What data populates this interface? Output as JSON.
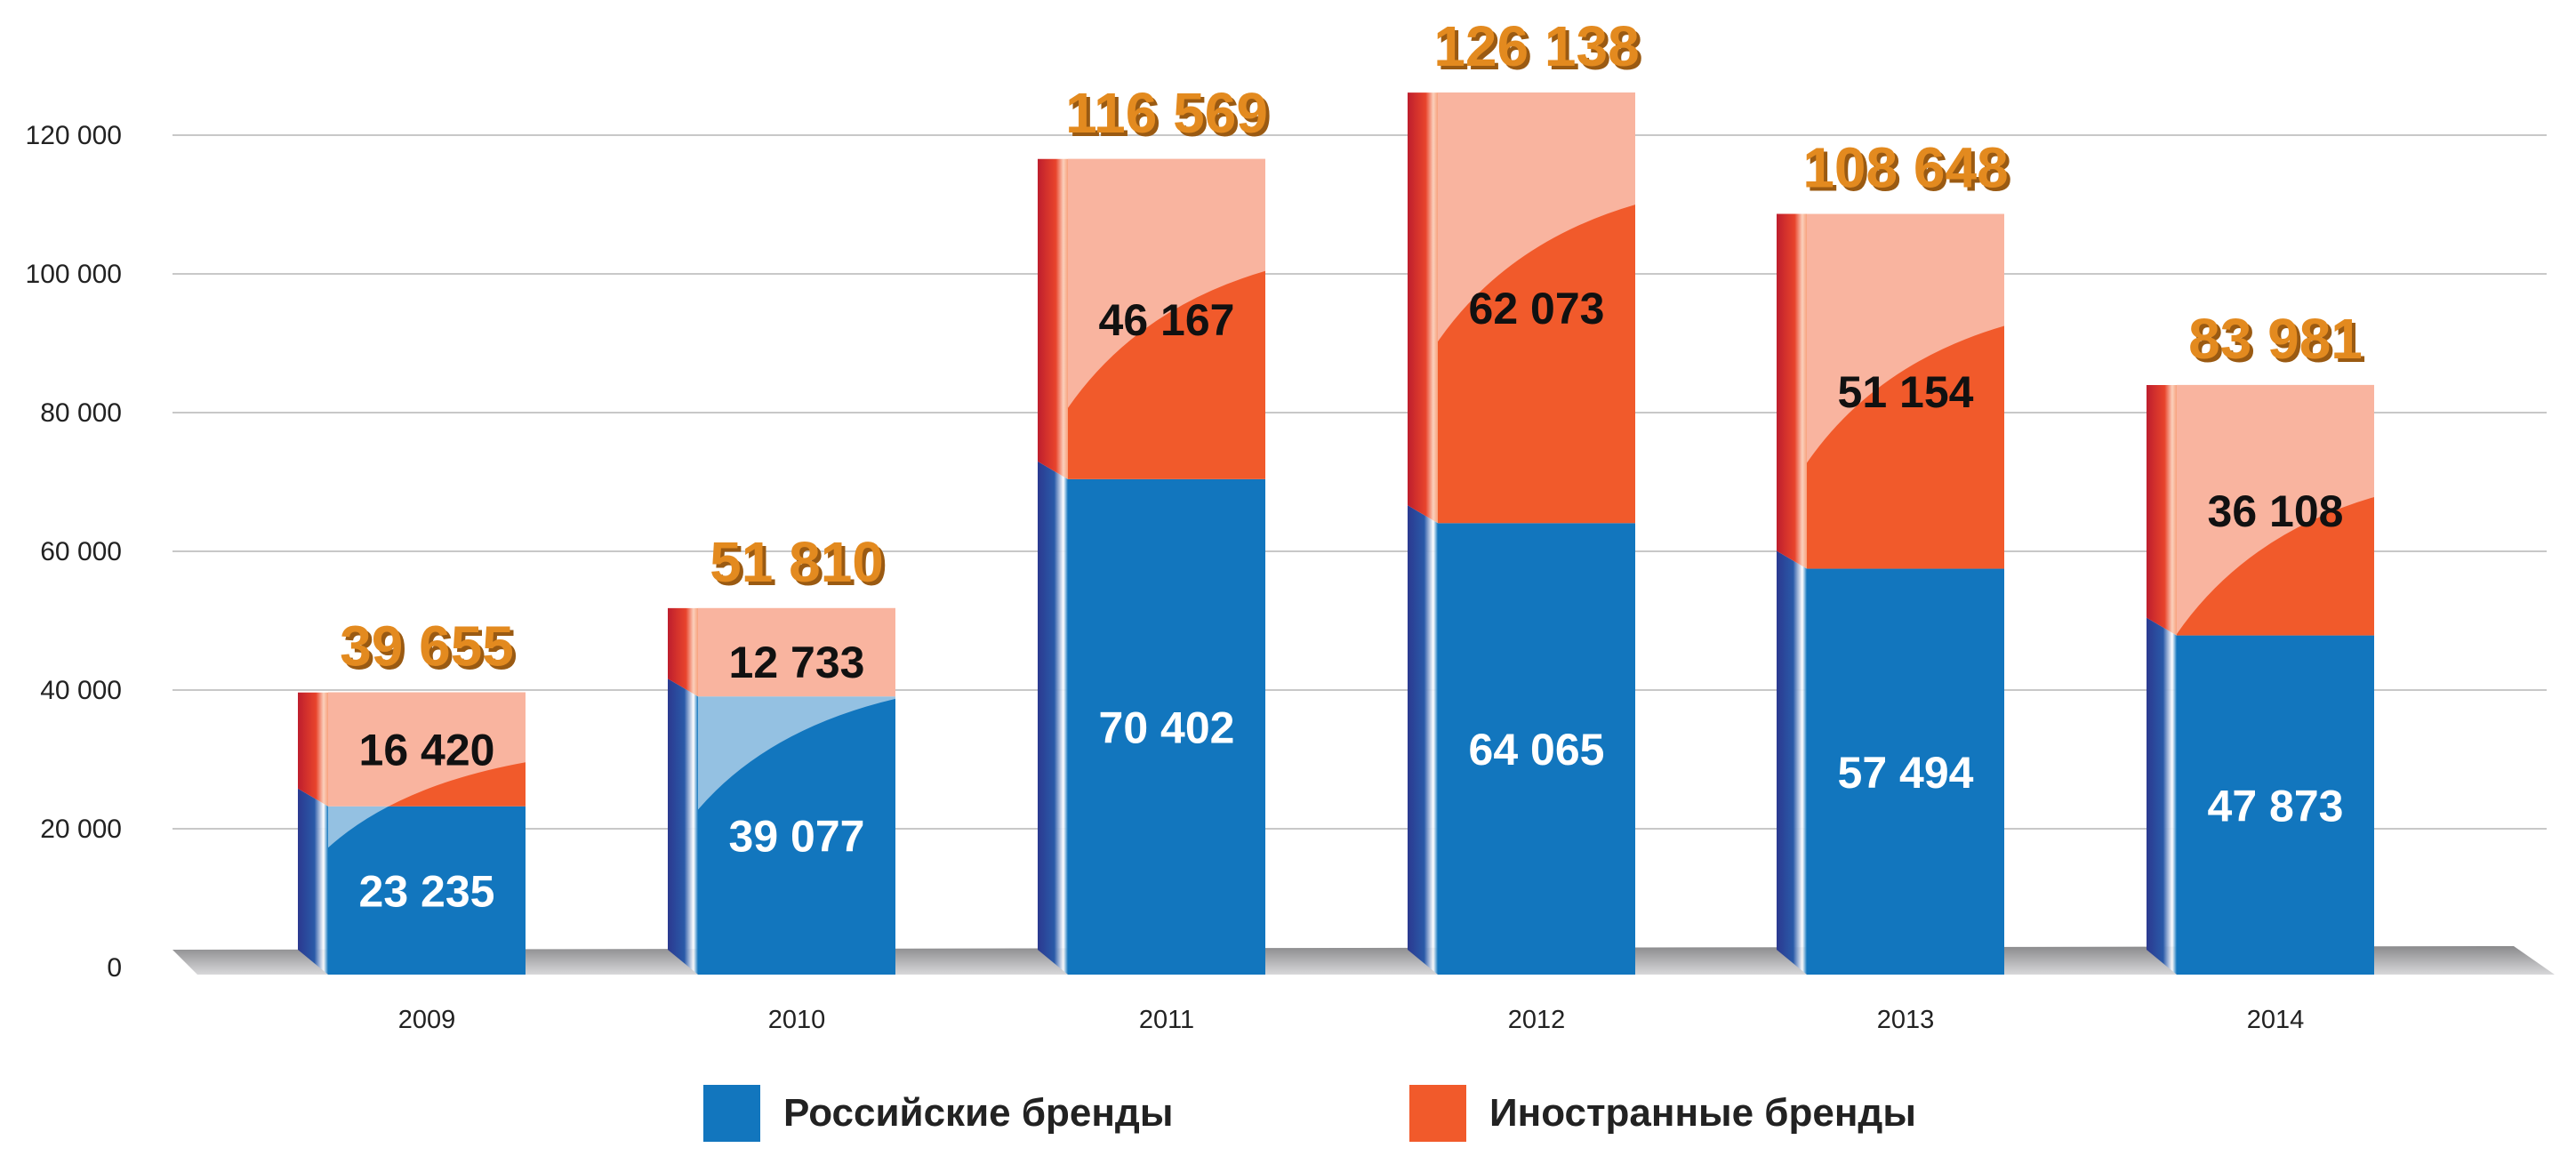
{
  "chart_data": {
    "type": "bar",
    "stacked": true,
    "categories": [
      "2009",
      "2010",
      "2011",
      "2012",
      "2013",
      "2014"
    ],
    "series": [
      {
        "name": "Российские бренды",
        "color": "#1276be",
        "values": [
          23235,
          39077,
          70402,
          64065,
          57494,
          47873
        ],
        "labels": [
          "23 235",
          "39 077",
          "70 402",
          "64 065",
          "57 494",
          "47 873"
        ]
      },
      {
        "name": "Иностранные бренды",
        "color": "#f15a2b",
        "values": [
          16420,
          12733,
          46167,
          62073,
          51154,
          36108
        ],
        "labels": [
          "16 420",
          "12 733",
          "46 167",
          "62 073",
          "51 154",
          "36 108"
        ]
      }
    ],
    "totals": [
      39655,
      51810,
      116569,
      126138,
      108648,
      83981
    ],
    "total_labels": [
      "39 655",
      "51 810",
      "116 569",
      "126 138",
      "108 648",
      "83 981"
    ],
    "yticks": [
      0,
      20000,
      40000,
      60000,
      80000,
      100000,
      120000
    ],
    "ytick_labels": [
      "0",
      "20 000",
      "40 000",
      "60 000",
      "80 000",
      "100 000",
      "120 000"
    ],
    "ylim": [
      0,
      120000
    ],
    "grid": true,
    "legend_position": "bottom",
    "total_color": "#e38a1f"
  }
}
